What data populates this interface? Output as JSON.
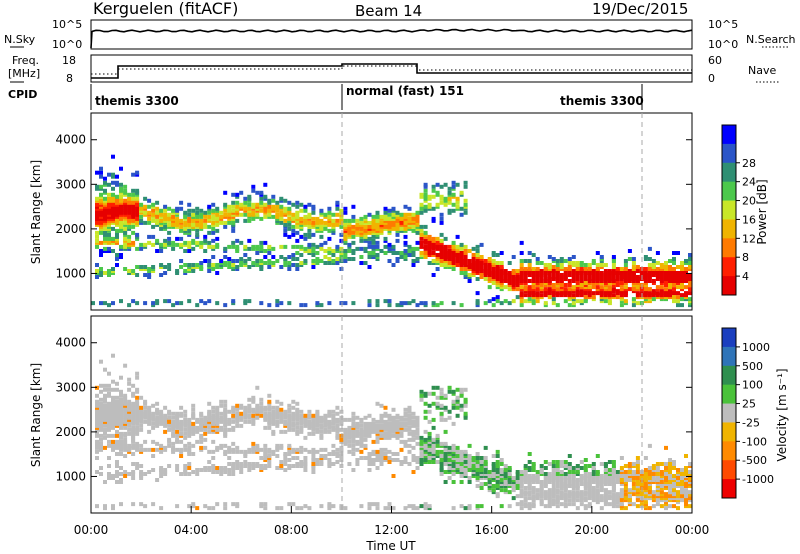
{
  "header": {
    "station": "Kerguelen (fitACF)",
    "beam": "Beam 14",
    "date": "19/Dec/2015"
  },
  "noise_panel": {
    "left_label": "N.Sky",
    "right_label": "N.Search",
    "left_ticks": [
      "10^5",
      "10^0"
    ],
    "right_ticks": [
      "10^5",
      "10^0"
    ]
  },
  "freq_panel": {
    "left_label_1": "Freq.",
    "left_label_2": "[MHz]",
    "right_label": "Nave",
    "left_ticks": [
      "18",
      "8"
    ],
    "right_ticks": [
      "60",
      "0"
    ]
  },
  "cpid": {
    "label": "CPID",
    "segments": [
      "themis 3300",
      "normal (fast) 151",
      "themis 3300"
    ],
    "boundaries_hours": [
      10.0,
      22.0
    ]
  },
  "time_axis": {
    "label": "Time UT",
    "ticks": [
      "00:00",
      "04:00",
      "08:00",
      "12:00",
      "16:00",
      "20:00",
      "00:00"
    ]
  },
  "chart_data": [
    {
      "type": "heatmap",
      "name": "power",
      "ylabel": "Slant Range [km]",
      "yticks": [
        "1000",
        "2000",
        "3000",
        "4000"
      ],
      "ylim": [
        180,
        4600
      ],
      "xlim_hours": [
        0,
        24
      ],
      "colorbar_label": "Power [dB]",
      "colorbar_ticks": [
        "4",
        "8",
        "12",
        "16",
        "20",
        "24",
        "28"
      ],
      "colorbar_colors": [
        "#0000ff",
        "#2b55c8",
        "#2f8f73",
        "#4cc84c",
        "#c8e628",
        "#f0b400",
        "#ff7a00",
        "#ff1f00",
        "#e60000"
      ]
    },
    {
      "type": "heatmap",
      "name": "velocity",
      "ylabel": "Slant Range [km]",
      "yticks": [
        "1000",
        "2000",
        "3000",
        "4000"
      ],
      "ylim": [
        180,
        4600
      ],
      "xlim_hours": [
        0,
        24
      ],
      "colorbar_label": "Velocity [m s⁻¹]",
      "colorbar_ticks": [
        "1000",
        "500",
        "100",
        "25",
        "-25",
        "-100",
        "-500",
        "-1000"
      ],
      "colorbar_colors": [
        "#1b3fbf",
        "#2f74b8",
        "#2f8f4f",
        "#4ac23a",
        "#bdbdbd",
        "#f0b400",
        "#ff8a00",
        "#ff4a00",
        "#ee0000"
      ]
    }
  ]
}
